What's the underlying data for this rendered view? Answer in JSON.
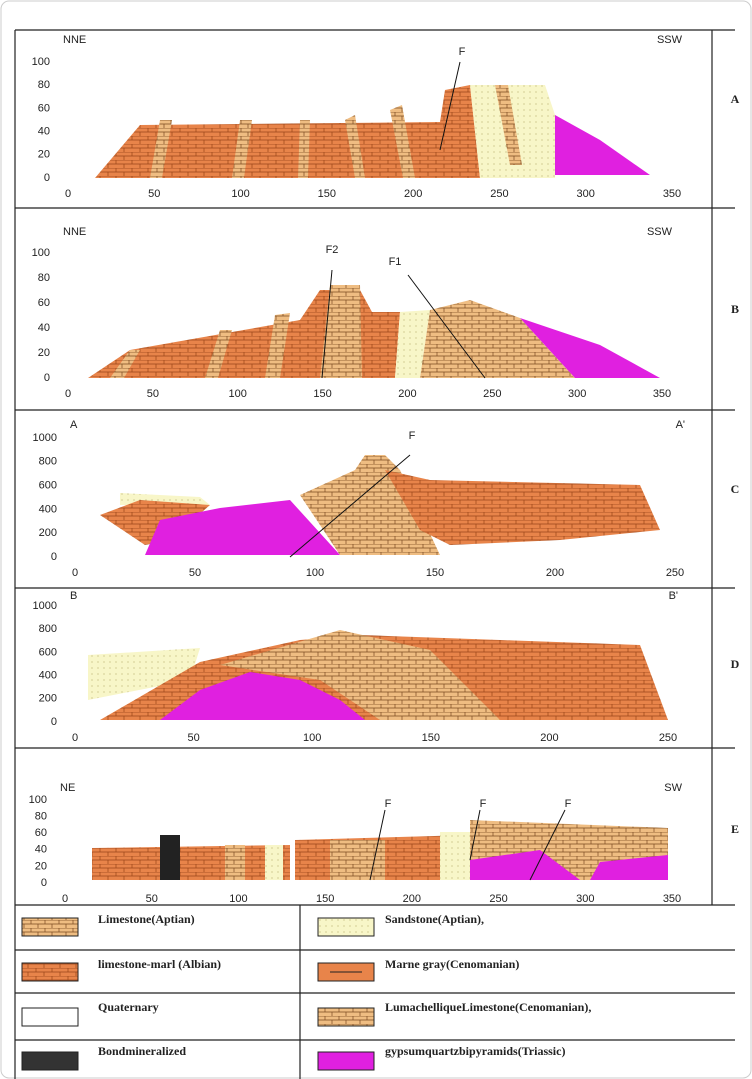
{
  "panels": [
    {
      "label": "A",
      "left": "NNE",
      "right": "SSW",
      "faults": [
        "F"
      ],
      "yticks": [
        "0",
        "20",
        "40",
        "60",
        "80",
        "100"
      ],
      "xticks": [
        "0",
        "50",
        "100",
        "150",
        "200",
        "250",
        "300",
        "350"
      ]
    },
    {
      "label": "B",
      "left": "NNE",
      "right": "SSW",
      "faults": [
        "F2",
        "F1"
      ],
      "yticks": [
        "0",
        "20",
        "40",
        "60",
        "80",
        "100"
      ],
      "xticks": [
        "0",
        "50",
        "100",
        "150",
        "200",
        "250",
        "300",
        "350"
      ]
    },
    {
      "label": "C",
      "left": "A",
      "right": "A'",
      "faults": [
        "F"
      ],
      "yticks": [
        "0",
        "200",
        "400",
        "600",
        "800",
        "1000"
      ],
      "xticks": [
        "0",
        "50",
        "100",
        "150",
        "200",
        "250"
      ]
    },
    {
      "label": "D",
      "left": "B",
      "right": "B'",
      "faults": [],
      "yticks": [
        "0",
        "200",
        "400",
        "600",
        "800",
        "1000"
      ],
      "xticks": [
        "0",
        "50",
        "100",
        "150",
        "200",
        "250"
      ]
    },
    {
      "label": "E",
      "left": "NE",
      "right": "SW",
      "faults": [
        "F",
        "F",
        "F"
      ],
      "yticks": [
        "0",
        "20",
        "40",
        "60",
        "80",
        "100"
      ],
      "xticks": [
        "0",
        "50",
        "100",
        "150",
        "200",
        "250",
        "300",
        "350"
      ]
    }
  ],
  "legend": [
    "Limestone(Aptian)",
    "Sandstone(Aptian),",
    "limestone-marl (Albian)",
    "Marne gray(Cenomanian)",
    "Quaternary",
    "LumachelliqueLimestone(Cenomanian),",
    "Bondmineralized",
    "gypsumquartzbipyramids(Triassic)"
  ]
}
